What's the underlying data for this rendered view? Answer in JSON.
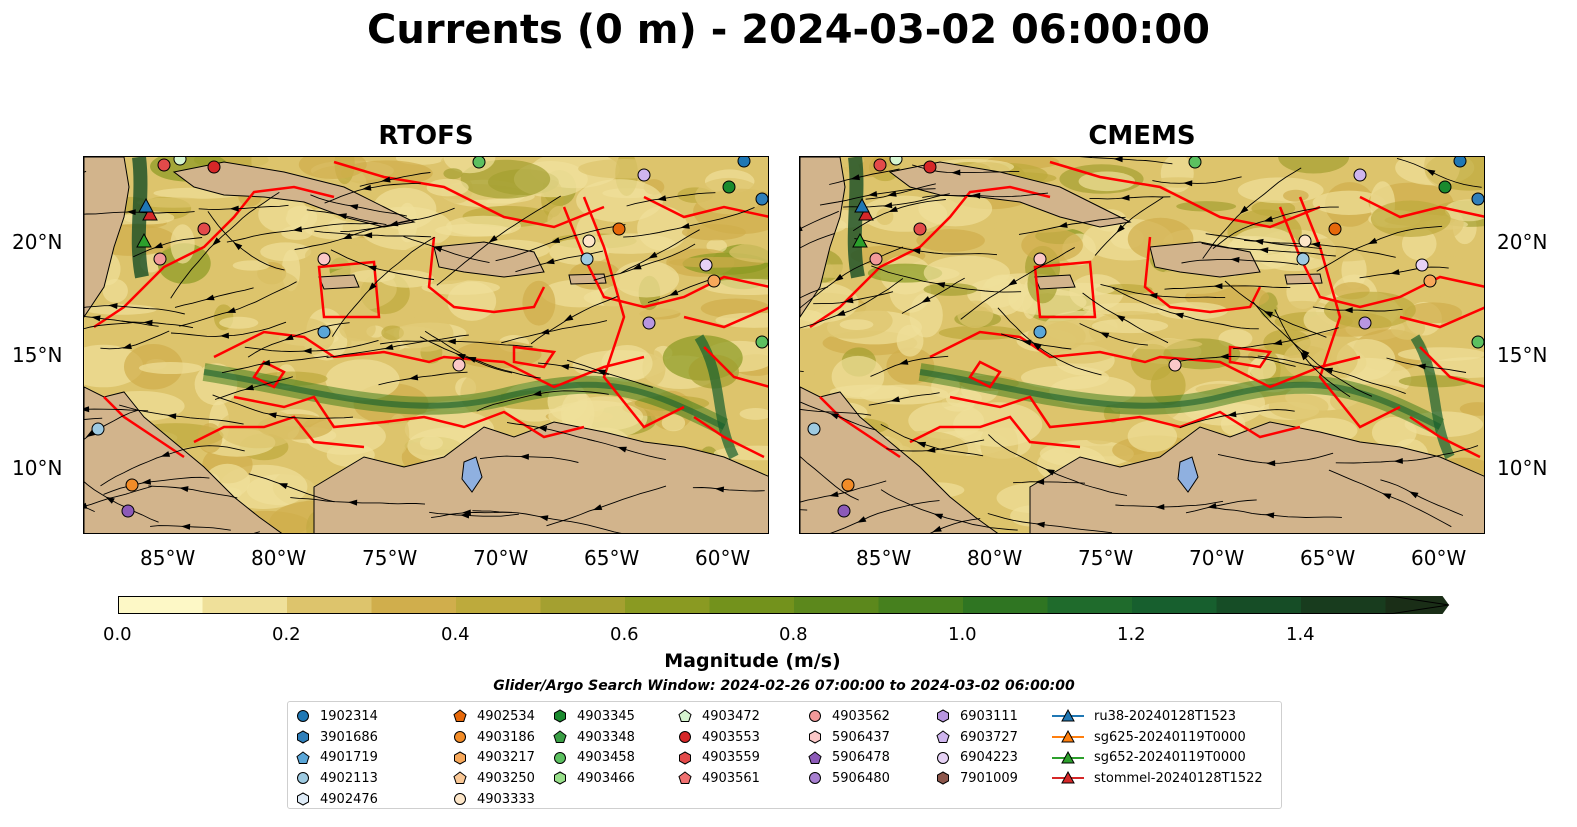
{
  "title": "Currents (0 m) - 2024-03-02 06:00:00",
  "panels": [
    {
      "title": "RTOFS"
    },
    {
      "title": "CMEMS"
    }
  ],
  "axes": {
    "lat_labels": [
      "20°N",
      "15°N",
      "10°N"
    ],
    "lon_labels": [
      "85°W",
      "80°W",
      "75°W",
      "70°W",
      "65°W",
      "60°W"
    ]
  },
  "colorbar": {
    "label": "Magnitude (m/s)",
    "ticks": [
      "0.0",
      "0.2",
      "0.4",
      "0.6",
      "0.8",
      "1.0",
      "1.2",
      "1.4"
    ],
    "colors": [
      "#fdf8c6",
      "#efe09a",
      "#ddc46c",
      "#d0ae4c",
      "#bdaa3c",
      "#a4a030",
      "#8a9a22",
      "#73921c",
      "#5c881c",
      "#46801e",
      "#2f7522",
      "#1f6b2c",
      "#175f2e",
      "#164d26",
      "#183c1e",
      "#1a2e17"
    ]
  },
  "search_window": "Glider/Argo Search Window: 2024-02-26 07:00:00 to 2024-03-02 06:00:00",
  "legend": {
    "columns": [
      [
        {
          "label": "1902314",
          "marker": "circle",
          "color": "#1f77b4"
        },
        {
          "label": "3901686",
          "marker": "hexagon",
          "color": "#2f7fba"
        },
        {
          "label": "4901719",
          "marker": "pentagon",
          "color": "#5aa6d8"
        },
        {
          "label": "4902113",
          "marker": "circle",
          "color": "#9ecae1"
        },
        {
          "label": "4902476",
          "marker": "hexagon",
          "color": "#deebf7"
        }
      ],
      [
        {
          "label": "4902534",
          "marker": "pentagon",
          "color": "#e6680a"
        },
        {
          "label": "4903186",
          "marker": "circle",
          "color": "#f28c28"
        },
        {
          "label": "4903217",
          "marker": "hexagon",
          "color": "#f7a85a"
        },
        {
          "label": "4903250",
          "marker": "pentagon",
          "color": "#fac896"
        },
        {
          "label": "4903333",
          "marker": "circle",
          "color": "#fde6c8"
        }
      ],
      [
        {
          "label": "4903345",
          "marker": "hexagon",
          "color": "#1a8a2e"
        },
        {
          "label": "4903348",
          "marker": "pentagon",
          "color": "#3a9e45"
        },
        {
          "label": "4903458",
          "marker": "circle",
          "color": "#5cc060"
        },
        {
          "label": "4903466",
          "marker": "hexagon",
          "color": "#98df8a"
        },
        {
          "label": "",
          "marker": "none",
          "color": ""
        }
      ],
      [
        {
          "label": "4903472",
          "marker": "pentagon",
          "color": "#d6f5d0"
        },
        {
          "label": "4903553",
          "marker": "circle",
          "color": "#d62728"
        },
        {
          "label": "4903559",
          "marker": "hexagon",
          "color": "#e34a4a"
        },
        {
          "label": "4903561",
          "marker": "pentagon",
          "color": "#ef7070"
        },
        {
          "label": "",
          "marker": "none",
          "color": ""
        }
      ],
      [
        {
          "label": "4903562",
          "marker": "circle",
          "color": "#f29a9a"
        },
        {
          "label": "5906437",
          "marker": "hexagon",
          "color": "#fbc8c8"
        },
        {
          "label": "5906478",
          "marker": "pentagon",
          "color": "#8c5ab8"
        },
        {
          "label": "5906480",
          "marker": "circle",
          "color": "#a77fd0"
        },
        {
          "label": "",
          "marker": "none",
          "color": ""
        }
      ],
      [
        {
          "label": "6903111",
          "marker": "hexagon",
          "color": "#b896e0"
        },
        {
          "label": "6903727",
          "marker": "pentagon",
          "color": "#cfb5ee"
        },
        {
          "label": "6904223",
          "marker": "circle",
          "color": "#e6d2f5"
        },
        {
          "label": "7901009",
          "marker": "hexagon",
          "color": "#8c564b"
        },
        {
          "label": "",
          "marker": "none",
          "color": ""
        }
      ],
      [
        {
          "label": "ru38-20240128T1523",
          "marker": "triangle-line",
          "color": "#1f77b4"
        },
        {
          "label": "sg625-20240119T0000",
          "marker": "triangle-line",
          "color": "#ff7f0e"
        },
        {
          "label": "sg652-20240119T0000",
          "marker": "triangle-line",
          "color": "#2ca02c"
        },
        {
          "label": "stommel-20240128T1522",
          "marker": "triangle-line",
          "color": "#d62728"
        },
        {
          "label": "",
          "marker": "none",
          "color": ""
        }
      ]
    ]
  },
  "map_colors": {
    "land": "#d2b48c",
    "lake": "#8fb0e0",
    "boundary": "#ff0000",
    "streamline": "#000000"
  }
}
